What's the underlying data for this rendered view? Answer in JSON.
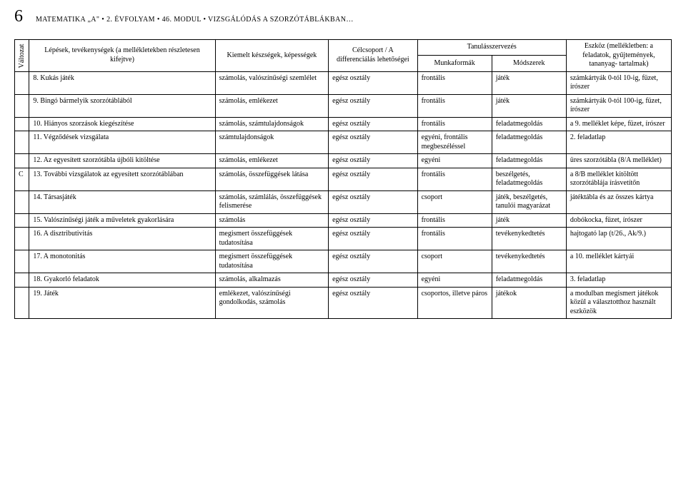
{
  "header": {
    "page_num": "6",
    "doc_title": "MATEMATIKA „A\" • 2. ÉVFOLYAM • 46. MODUL • VIZSGÁLÓDÁS A SZORZÓTÁBLÁKBAN…"
  },
  "thead": {
    "variant": "Változat",
    "steps": "Lépések, tevékenységek\n(a mellékletekben részletesen kifejtve)",
    "skills": "Kiemelt készségek, képességek",
    "target": "Célcsoport /\nA differenciálás lehetőségei",
    "org": "Tanulásszervezés",
    "forms": "Munkaformák",
    "methods": "Módszerek",
    "tools": "Eszköz\n(mellékletben:\na feladatok,\ngyűjtemények,\ntananyag-\ntartalmak)"
  },
  "rows": [
    {
      "variant": "",
      "steps": "8. Kukás játék",
      "skills": "számolás, valószínűségi szemlélet",
      "target": "egész osztály",
      "forms": "frontális",
      "methods": "játék",
      "tools": "számkártyák 0-tól 10-ig, füzet, írószer"
    },
    {
      "variant": "",
      "steps": "9. Bingó bármelyik szorzótáblából",
      "skills": "számolás, emlékezet",
      "target": "egész osztály",
      "forms": "frontális",
      "methods": "játék",
      "tools": "számkártyák 0-tól 100-ig, füzet, írószer"
    },
    {
      "variant": "",
      "steps": "10. Hiányos szorzások kiegészítése",
      "skills": "számolás, számtulajdonságok",
      "target": "egész osztály",
      "forms": "frontális",
      "methods": "feladatmegoldás",
      "tools": "a 9. melléklet képe, füzet, írószer"
    },
    {
      "variant": "",
      "steps": "11. Végződések vizsgálata",
      "skills": "számtulajdonságok",
      "target": "egész osztály",
      "forms": "egyéni, frontális megbeszéléssel",
      "methods": "feladatmegoldás",
      "tools": "2. feladatlap"
    },
    {
      "variant": "",
      "steps": "12. Az egyesített szorzótábla újbóli kitöltése",
      "skills": "számolás, emlékezet",
      "target": "egész osztály",
      "forms": "egyéni",
      "methods": "feladatmegoldás",
      "tools": "üres szorzótábla (8/A melléklet)"
    },
    {
      "variant": "C",
      "steps": "13. További vizsgálatok az egyesített szorzótáblában",
      "skills": "számolás, összefüggések látása",
      "target": "egész osztály",
      "forms": "frontális",
      "methods": "beszélgetés, feladatmegoldás",
      "tools": "a 8/B melléklet kitöltött szorzótáblája írásvetítőn"
    },
    {
      "variant": "",
      "steps": "14. Társasjáték",
      "skills": "számolás, számlálás, összefüggések felismerése",
      "target": "egész osztály",
      "forms": "csoport",
      "methods": "játék, beszélgetés, tanulói magyarázat",
      "tools": "játéktábla és az összes kártya"
    },
    {
      "variant": "",
      "steps": "15. Valószínűségi játék a műveletek gyakorlására",
      "skills": "számolás",
      "target": "egész osztály",
      "forms": "frontális",
      "methods": "játék",
      "tools": "dobókocka, füzet, írószer"
    },
    {
      "variant": "",
      "steps": "16. A disztributivitás",
      "skills": "megismert összefüggések tudatosítása",
      "target": "egész osztály",
      "forms": "frontális",
      "methods": "tevékenykedtetés",
      "tools": "hajtogató lap (t/26., Ak/9.)"
    },
    {
      "variant": "",
      "steps": "17. A monotonitás",
      "skills": "megismert összefüggések tudatosítása",
      "target": "egész osztály",
      "forms": "csoport",
      "methods": "tevékenykedtetés",
      "tools": "a 10. melléklet kártyái"
    },
    {
      "variant": "",
      "steps": "18. Gyakorló feladatok",
      "skills": "számolás, alkalmazás",
      "target": "egész osztály",
      "forms": "egyéni",
      "methods": "feladatmegoldás",
      "tools": "3. feladatlap"
    },
    {
      "variant": "",
      "steps": "19. Játék",
      "skills": "emlékezet, valószínűségi gondolkodás, számolás",
      "target": "egész osztály",
      "forms": "csoportos, illetve páros",
      "methods": "játékok",
      "tools": "a modulban megismert játékok közül a választotthoz használt eszközök"
    }
  ]
}
